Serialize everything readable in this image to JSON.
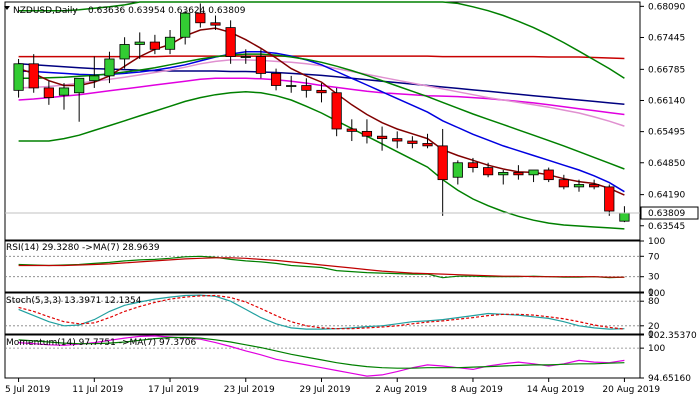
{
  "chart_data": {
    "type": "candlestick",
    "symbol": "NZDUSD,Daily",
    "ohlc_values": "0.63636 0.63954 0.63624 0.63809",
    "x_labels": [
      "5 Jul 2019",
      "11 Jul 2019",
      "17 Jul 2019",
      "23 Jul 2019",
      "29 Jul 2019",
      "2 Aug 2019",
      "8 Aug 2019",
      "14 Aug 2019",
      "20 Aug 2019"
    ],
    "price_axis": {
      "ticks": [
        "0.68090",
        "0.67445",
        "0.66785",
        "0.66140",
        "0.65495",
        "0.64850",
        "0.64190",
        "0.63545"
      ],
      "tick_values": [
        0.6809,
        0.67445,
        0.66785,
        0.6614,
        0.65495,
        0.6485,
        0.6419,
        0.63545
      ],
      "ylim": [
        0.6325,
        0.6818
      ],
      "current_price_label": "0.63809",
      "current_price": 0.63809
    },
    "candles": [
      {
        "o": 0.6635,
        "h": 0.67,
        "l": 0.662,
        "c": 0.669
      },
      {
        "o": 0.669,
        "h": 0.671,
        "l": 0.663,
        "c": 0.664
      },
      {
        "o": 0.664,
        "h": 0.6655,
        "l": 0.6605,
        "c": 0.662
      },
      {
        "o": 0.6625,
        "h": 0.665,
        "l": 0.6595,
        "c": 0.664
      },
      {
        "o": 0.663,
        "h": 0.666,
        "l": 0.657,
        "c": 0.666
      },
      {
        "o": 0.6655,
        "h": 0.6705,
        "l": 0.664,
        "c": 0.6665
      },
      {
        "o": 0.6665,
        "h": 0.6715,
        "l": 0.665,
        "c": 0.67
      },
      {
        "o": 0.67,
        "h": 0.6745,
        "l": 0.668,
        "c": 0.673
      },
      {
        "o": 0.673,
        "h": 0.6755,
        "l": 0.67,
        "c": 0.6735
      },
      {
        "o": 0.6735,
        "h": 0.675,
        "l": 0.671,
        "c": 0.672
      },
      {
        "o": 0.672,
        "h": 0.676,
        "l": 0.671,
        "c": 0.6745
      },
      {
        "o": 0.6745,
        "h": 0.68,
        "l": 0.673,
        "c": 0.6795
      },
      {
        "o": 0.6795,
        "h": 0.6815,
        "l": 0.6765,
        "c": 0.6775
      },
      {
        "o": 0.6775,
        "h": 0.679,
        "l": 0.676,
        "c": 0.677
      },
      {
        "o": 0.6765,
        "h": 0.678,
        "l": 0.669,
        "c": 0.6705
      },
      {
        "o": 0.6705,
        "h": 0.672,
        "l": 0.669,
        "c": 0.6705
      },
      {
        "o": 0.6705,
        "h": 0.672,
        "l": 0.666,
        "c": 0.667
      },
      {
        "o": 0.667,
        "h": 0.668,
        "l": 0.6635,
        "c": 0.6645
      },
      {
        "o": 0.6645,
        "h": 0.6665,
        "l": 0.663,
        "c": 0.6645
      },
      {
        "o": 0.6645,
        "h": 0.666,
        "l": 0.662,
        "c": 0.6635
      },
      {
        "o": 0.6635,
        "h": 0.665,
        "l": 0.661,
        "c": 0.663
      },
      {
        "o": 0.663,
        "h": 0.664,
        "l": 0.654,
        "c": 0.6555
      },
      {
        "o": 0.6555,
        "h": 0.6575,
        "l": 0.653,
        "c": 0.655
      },
      {
        "o": 0.655,
        "h": 0.6575,
        "l": 0.6525,
        "c": 0.654
      },
      {
        "o": 0.654,
        "h": 0.656,
        "l": 0.651,
        "c": 0.6535
      },
      {
        "o": 0.6535,
        "h": 0.655,
        "l": 0.6515,
        "c": 0.653
      },
      {
        "o": 0.653,
        "h": 0.654,
        "l": 0.6515,
        "c": 0.6525
      },
      {
        "o": 0.6525,
        "h": 0.6545,
        "l": 0.6515,
        "c": 0.652
      },
      {
        "o": 0.652,
        "h": 0.6555,
        "l": 0.6375,
        "c": 0.645
      },
      {
        "o": 0.6455,
        "h": 0.649,
        "l": 0.644,
        "c": 0.6485
      },
      {
        "o": 0.6485,
        "h": 0.6495,
        "l": 0.6465,
        "c": 0.6475
      },
      {
        "o": 0.6475,
        "h": 0.6485,
        "l": 0.6455,
        "c": 0.646
      },
      {
        "o": 0.646,
        "h": 0.647,
        "l": 0.644,
        "c": 0.6465
      },
      {
        "o": 0.6465,
        "h": 0.648,
        "l": 0.645,
        "c": 0.646
      },
      {
        "o": 0.646,
        "h": 0.647,
        "l": 0.6445,
        "c": 0.647
      },
      {
        "o": 0.647,
        "h": 0.6475,
        "l": 0.6445,
        "c": 0.645
      },
      {
        "o": 0.645,
        "h": 0.646,
        "l": 0.643,
        "c": 0.6435
      },
      {
        "o": 0.6435,
        "h": 0.645,
        "l": 0.6425,
        "c": 0.644
      },
      {
        "o": 0.644,
        "h": 0.645,
        "l": 0.643,
        "c": 0.6435
      },
      {
        "o": 0.6435,
        "h": 0.644,
        "l": 0.6375,
        "c": 0.6385
      },
      {
        "o": 0.6364,
        "h": 0.6395,
        "l": 0.6362,
        "c": 0.6381
      }
    ],
    "overlays": [
      {
        "color": "#c80000",
        "values": [
          0.6705,
          0.6705,
          0.6705,
          0.6705,
          0.6705,
          0.6705,
          0.6705,
          0.6705,
          0.6705,
          0.6705,
          0.6706,
          0.6706,
          0.6706,
          0.6706,
          0.6706,
          0.6706,
          0.6706,
          0.6706,
          0.6706,
          0.6706,
          0.6706,
          0.6706,
          0.6706,
          0.6706,
          0.6706,
          0.6706,
          0.6706,
          0.6706,
          0.6705,
          0.6705,
          0.6705,
          0.6705,
          0.6705,
          0.6705,
          0.6705,
          0.6704,
          0.6704,
          0.6704,
          0.6703,
          0.6702,
          0.6701
        ]
      },
      {
        "color": "#000080",
        "values": [
          0.669,
          0.6688,
          0.6686,
          0.6684,
          0.6682,
          0.668,
          0.6679,
          0.6678,
          0.6677,
          0.6676,
          0.6675,
          0.6675,
          0.6675,
          0.6675,
          0.6674,
          0.6674,
          0.6673,
          0.6672,
          0.667,
          0.6668,
          0.6666,
          0.6663,
          0.666,
          0.6657,
          0.6654,
          0.6651,
          0.6648,
          0.6645,
          0.6642,
          0.6639,
          0.6636,
          0.6633,
          0.663,
          0.6627,
          0.6624,
          0.6621,
          0.6618,
          0.6615,
          0.6612,
          0.6609,
          0.6606
        ]
      },
      {
        "color": "#e000e0",
        "values": [
          0.6615,
          0.6617,
          0.662,
          0.6623,
          0.6626,
          0.663,
          0.6634,
          0.6638,
          0.6642,
          0.6646,
          0.665,
          0.6654,
          0.6658,
          0.666,
          0.666,
          0.666,
          0.6659,
          0.6657,
          0.6654,
          0.665,
          0.6645,
          0.6641,
          0.6637,
          0.6633,
          0.663,
          0.6628,
          0.6626,
          0.6624,
          0.6623,
          0.6622,
          0.662,
          0.6618,
          0.6615,
          0.6612,
          0.6609,
          0.6605,
          0.6601,
          0.6597,
          0.6593,
          0.6589,
          0.6585
        ]
      },
      {
        "color": "#e090d0",
        "values": [
          0.664,
          0.6641,
          0.6643,
          0.6646,
          0.665,
          0.6654,
          0.6658,
          0.6662,
          0.6667,
          0.6672,
          0.6677,
          0.6683,
          0.669,
          0.6695,
          0.6698,
          0.6698,
          0.6697,
          0.6695,
          0.6693,
          0.669,
          0.6686,
          0.668,
          0.6674,
          0.6668,
          0.6662,
          0.6656,
          0.665,
          0.6644,
          0.6638,
          0.6632,
          0.6626,
          0.662,
          0.6615,
          0.661,
          0.6605,
          0.66,
          0.6594,
          0.6588,
          0.658,
          0.6571,
          0.6561
        ]
      },
      {
        "color": "#0000e0",
        "values": [
          0.6675,
          0.6674,
          0.6672,
          0.667,
          0.6668,
          0.6667,
          0.6668,
          0.667,
          0.6673,
          0.6677,
          0.6682,
          0.6688,
          0.6696,
          0.6704,
          0.671,
          0.6715,
          0.6715,
          0.6712,
          0.6706,
          0.6698,
          0.6688,
          0.6674,
          0.666,
          0.6646,
          0.6632,
          0.6618,
          0.6604,
          0.659,
          0.6572,
          0.6558,
          0.6544,
          0.6532,
          0.652,
          0.651,
          0.65,
          0.649,
          0.648,
          0.647,
          0.6458,
          0.6444,
          0.6425
        ]
      },
      {
        "color": "#008000",
        "values": [
          0.666,
          0.666,
          0.6661,
          0.6662,
          0.6664,
          0.6666,
          0.6669,
          0.6673,
          0.6677,
          0.6682,
          0.6688,
          0.6694,
          0.67,
          0.6705,
          0.6708,
          0.671,
          0.671,
          0.6708,
          0.6704,
          0.6699,
          0.6693,
          0.6685,
          0.6676,
          0.6666,
          0.6655,
          0.6644,
          0.6633,
          0.6622,
          0.661,
          0.6598,
          0.6586,
          0.6575,
          0.6564,
          0.6553,
          0.6542,
          0.6531,
          0.652,
          0.6508,
          0.6496,
          0.6484,
          0.6472
        ]
      },
      {
        "color": "#800000",
        "values": [
          0.668,
          0.667,
          0.6655,
          0.6645,
          0.6645,
          0.6652,
          0.6665,
          0.6685,
          0.6705,
          0.672,
          0.673,
          0.6748,
          0.676,
          0.6764,
          0.6755,
          0.674,
          0.6722,
          0.6702,
          0.668,
          0.6665,
          0.6652,
          0.6628,
          0.6605,
          0.6585,
          0.6568,
          0.6555,
          0.6545,
          0.6535,
          0.6512,
          0.65,
          0.649,
          0.648,
          0.6472,
          0.6466,
          0.6465,
          0.646,
          0.6452,
          0.6446,
          0.6442,
          0.6432,
          0.6418
        ]
      },
      {
        "color": "#008000",
        "values": [
          0.68,
          0.68,
          0.68,
          0.68,
          0.6802,
          0.6805,
          0.6808,
          0.6812,
          0.6818,
          0.6818,
          0.6818,
          0.6818,
          0.6818,
          0.6818,
          0.6818,
          0.6818,
          0.6818,
          0.6818,
          0.6818,
          0.6818,
          0.6818,
          0.6818,
          0.6818,
          0.6818,
          0.6818,
          0.6818,
          0.6818,
          0.6818,
          0.6818,
          0.6815,
          0.6808,
          0.68,
          0.679,
          0.6778,
          0.6765,
          0.675,
          0.6734,
          0.6716,
          0.6698,
          0.668,
          0.666
        ]
      },
      {
        "color": "#008000",
        "values": [
          0.653,
          0.653,
          0.653,
          0.6535,
          0.6542,
          0.6552,
          0.6562,
          0.6572,
          0.6582,
          0.6592,
          0.6602,
          0.6612,
          0.662,
          0.6626,
          0.663,
          0.6632,
          0.663,
          0.6624,
          0.6615,
          0.6602,
          0.6588,
          0.6572,
          0.6556,
          0.654,
          0.6524,
          0.6508,
          0.6492,
          0.6476,
          0.645,
          0.6428,
          0.641,
          0.6396,
          0.6384,
          0.6374,
          0.6366,
          0.636,
          0.6356,
          0.6354,
          0.6352,
          0.635,
          0.6348
        ]
      }
    ],
    "rsi": {
      "label": "RSI(14) 29.3280  ->MA(7) 28.9639",
      "levels": [
        "100",
        "70",
        "30",
        "0"
      ],
      "level_values": [
        100,
        70,
        30,
        0
      ],
      "rsi_values": [
        54,
        53,
        52,
        53,
        54,
        56,
        58,
        61,
        63,
        64,
        66,
        69,
        70,
        68,
        64,
        61,
        59,
        56,
        52,
        50,
        48,
        42,
        40,
        38,
        37,
        36,
        35,
        35,
        28,
        31,
        31,
        30,
        30,
        30,
        31,
        30,
        29,
        29,
        30,
        28,
        29
      ],
      "ma_values": [
        52,
        52,
        52,
        52,
        53,
        54,
        55,
        57,
        59,
        61,
        63,
        65,
        66,
        67,
        67,
        66,
        64,
        62,
        59,
        56,
        53,
        50,
        47,
        44,
        41,
        39,
        37,
        36,
        35,
        34,
        33,
        32,
        31,
        31,
        30,
        30,
        30,
        30,
        30,
        29,
        29
      ]
    },
    "stoch": {
      "label": "Stoch(5,3,3) 13.3971 12.1354",
      "levels": [
        "100",
        "80",
        "20",
        "0"
      ],
      "level_values": [
        100,
        80,
        20,
        0
      ],
      "k_values": [
        60,
        45,
        30,
        20,
        22,
        35,
        55,
        70,
        78,
        85,
        90,
        94,
        95,
        92,
        80,
        60,
        40,
        25,
        15,
        12,
        12,
        13,
        15,
        18,
        20,
        25,
        30,
        32,
        35,
        40,
        45,
        50,
        48,
        46,
        42,
        38,
        30,
        20,
        15,
        12,
        13
      ],
      "d_values": [
        65,
        55,
        42,
        30,
        25,
        27,
        40,
        55,
        67,
        77,
        85,
        90,
        93,
        94,
        89,
        78,
        62,
        45,
        30,
        20,
        15,
        13,
        13,
        15,
        17,
        20,
        25,
        29,
        32,
        36,
        40,
        45,
        48,
        48,
        46,
        42,
        37,
        30,
        22,
        16,
        12
      ]
    },
    "momentum": {
      "label": "Momentum(14) 97.7751  ->MA(7) 97.3706",
      "levels": [
        "102.35370",
        "100",
        "94.65160"
      ],
      "level_values": [
        102.3537,
        100,
        94.6516
      ],
      "mom_values": [
        101.0,
        100.8,
        100.6,
        100.5,
        100.7,
        101.0,
        101.4,
        101.8,
        102.1,
        102.2,
        102.0,
        101.8,
        101.6,
        101.0,
        100.3,
        99.5,
        98.8,
        98.0,
        97.5,
        97.0,
        96.5,
        96.0,
        95.5,
        95.0,
        95.2,
        95.8,
        96.5,
        97.0,
        96.8,
        96.5,
        96.2,
        96.8,
        97.2,
        97.5,
        97.2,
        96.8,
        97.2,
        97.8,
        97.5,
        97.4,
        97.8
      ],
      "ma_values": [
        101.5,
        101.3,
        101.1,
        100.9,
        100.8,
        100.8,
        100.9,
        101.1,
        101.4,
        101.7,
        101.9,
        101.9,
        101.8,
        101.5,
        101.1,
        100.6,
        100.1,
        99.5,
        98.9,
        98.4,
        97.9,
        97.4,
        97.0,
        96.7,
        96.5,
        96.4,
        96.4,
        96.5,
        96.5,
        96.5,
        96.6,
        96.7,
        96.8,
        96.9,
        97.0,
        97.0,
        97.1,
        97.2,
        97.2,
        97.3,
        97.4
      ]
    }
  }
}
